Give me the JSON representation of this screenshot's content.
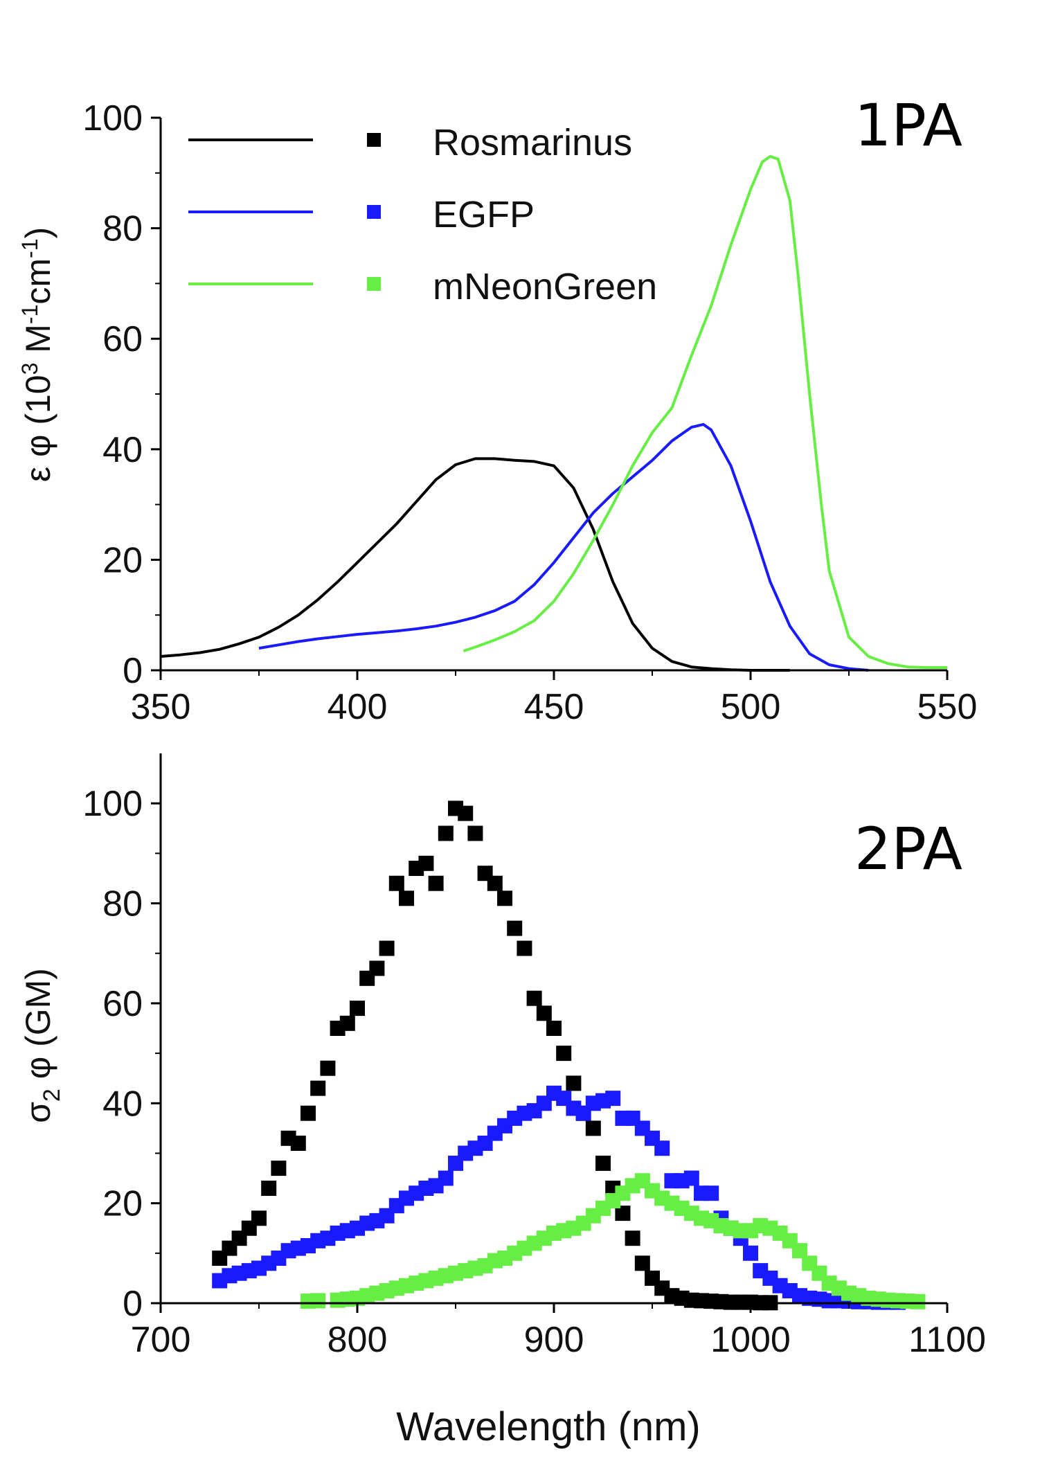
{
  "chart_data": [
    {
      "type": "line",
      "panel_label": "1PA",
      "xlabel": "",
      "ylabel": "ε φ (10³ M⁻¹cm⁻¹)",
      "ylabel_parts": {
        "pre": "ε φ (10",
        "sup1": "3",
        "mid": " M",
        "sup2": "-1",
        "mid2": "cm",
        "sup3": "-1",
        "post": ")"
      },
      "xlim": [
        350,
        550
      ],
      "ylim": [
        0,
        100
      ],
      "xticks": [
        "350",
        "400",
        "450",
        "500",
        "550"
      ],
      "yticks": [
        "0",
        "20",
        "40",
        "60",
        "80",
        "100"
      ],
      "legend": {
        "placement": "top-left",
        "entries": [
          {
            "label": "Rosmarinus",
            "color": "#000000"
          },
          {
            "label": "EGFP",
            "color": "#1a1aff"
          },
          {
            "label": "mNeonGreen",
            "color": "#66ee44"
          }
        ]
      },
      "series": [
        {
          "name": "Rosmarinus",
          "color": "#000000",
          "x": [
            350,
            355,
            360,
            365,
            370,
            375,
            380,
            385,
            390,
            395,
            400,
            405,
            410,
            415,
            420,
            425,
            430,
            435,
            440,
            445,
            450,
            455,
            460,
            465,
            470,
            475,
            480,
            485,
            490,
            495,
            500,
            505,
            510
          ],
          "y": [
            2.5,
            2.8,
            3.2,
            3.8,
            4.8,
            6.0,
            7.8,
            10,
            12.8,
            16,
            19.5,
            23,
            26.5,
            30.5,
            34.5,
            37.2,
            38.3,
            38.3,
            38,
            37.8,
            37,
            33,
            25.5,
            16,
            8.5,
            4,
            1.6,
            0.6,
            0.3,
            0.1,
            0,
            0,
            0
          ]
        },
        {
          "name": "EGFP",
          "color": "#1a1aff",
          "x": [
            375,
            380,
            385,
            390,
            395,
            400,
            405,
            410,
            415,
            420,
            425,
            430,
            435,
            440,
            445,
            450,
            455,
            460,
            465,
            470,
            475,
            480,
            485,
            488,
            490,
            495,
            500,
            505,
            510,
            515,
            520,
            525,
            530
          ],
          "y": [
            4,
            4.6,
            5.2,
            5.7,
            6.1,
            6.5,
            6.8,
            7.1,
            7.5,
            8.0,
            8.7,
            9.6,
            10.8,
            12.5,
            15.5,
            19.5,
            24,
            28.5,
            32,
            35,
            38,
            41.5,
            44,
            44.5,
            43.5,
            37,
            27,
            16,
            8,
            3,
            1,
            0.3,
            0
          ]
        },
        {
          "name": "mNeonGreen",
          "color": "#66ee44",
          "x": [
            427,
            430,
            435,
            440,
            445,
            450,
            455,
            460,
            465,
            470,
            475,
            480,
            485,
            490,
            495,
            500,
            503,
            505,
            507,
            510,
            512,
            515,
            518,
            520,
            525,
            530,
            535,
            540,
            545,
            550
          ],
          "y": [
            3.5,
            4.2,
            5.5,
            7.0,
            9.0,
            12.5,
            17.5,
            23.5,
            30,
            37,
            43,
            47.5,
            57,
            66,
            77,
            87,
            92,
            93,
            92.5,
            85,
            72,
            50,
            30,
            18,
            6,
            2.5,
            1.2,
            0.6,
            0.5,
            0.5
          ]
        }
      ]
    },
    {
      "type": "scatter",
      "panel_label": "2PA",
      "xlabel": "Wavelength (nm)",
      "ylabel": "σ₂ φ (GM)",
      "ylabel_parts": {
        "pre": "σ",
        "sub": "2",
        "post": " φ (GM)"
      },
      "xlim": [
        700,
        1100
      ],
      "ylim": [
        0,
        110
      ],
      "xticks": [
        "700",
        "800",
        "900",
        "1000",
        "1100"
      ],
      "yticks": [
        "0",
        "20",
        "40",
        "60",
        "80",
        "100"
      ],
      "series": [
        {
          "name": "Rosmarinus",
          "color": "#000000",
          "x": [
            730,
            735,
            740,
            745,
            750,
            755,
            760,
            765,
            770,
            775,
            780,
            785,
            790,
            795,
            800,
            805,
            810,
            815,
            820,
            825,
            830,
            835,
            840,
            845,
            850,
            855,
            860,
            865,
            870,
            875,
            880,
            885,
            890,
            895,
            900,
            905,
            910,
            915,
            920,
            925,
            930,
            935,
            940,
            945,
            950,
            955,
            960,
            965,
            970,
            975,
            980,
            985,
            990,
            995,
            1000,
            1005,
            1010
          ],
          "y": [
            9,
            11,
            13,
            15,
            17,
            23,
            27,
            33,
            32,
            38,
            43,
            47,
            55,
            56,
            59,
            65,
            67,
            71,
            84,
            81,
            87,
            88,
            84,
            94,
            99,
            98,
            94,
            86,
            84,
            81,
            75,
            71,
            61,
            58,
            55,
            50,
            44,
            38,
            35,
            28,
            23,
            18,
            13,
            8,
            5,
            3,
            1.5,
            1,
            0.6,
            0.5,
            0.4,
            0.3,
            0.2,
            0.2,
            0.2,
            0.1,
            0.1
          ]
        },
        {
          "name": "EGFP",
          "color": "#1a1aff",
          "x": [
            730,
            735,
            740,
            745,
            750,
            755,
            760,
            765,
            770,
            775,
            780,
            785,
            790,
            795,
            800,
            805,
            810,
            815,
            820,
            825,
            830,
            835,
            840,
            845,
            850,
            855,
            860,
            865,
            870,
            875,
            880,
            885,
            890,
            895,
            900,
            905,
            910,
            915,
            920,
            925,
            930,
            935,
            940,
            945,
            950,
            955,
            960,
            965,
            970,
            975,
            980,
            985,
            990,
            995,
            1000,
            1005,
            1010,
            1015,
            1020,
            1025,
            1030,
            1035,
            1040,
            1045,
            1050,
            1055,
            1060,
            1065,
            1070,
            1075
          ],
          "y": [
            4.5,
            5.5,
            6,
            6.5,
            7,
            8,
            9,
            10.5,
            11,
            11.5,
            12.5,
            13,
            14,
            14.5,
            15,
            16,
            16.5,
            17.5,
            19.5,
            21,
            22,
            23,
            23.5,
            25,
            28,
            30,
            31,
            32,
            34,
            35.5,
            37,
            38,
            38.5,
            40,
            42,
            41,
            39,
            38,
            40,
            40.5,
            41,
            37,
            37,
            35,
            33,
            31,
            24.5,
            24.5,
            25,
            22,
            22,
            17,
            15,
            13,
            10,
            6.5,
            5,
            3.5,
            2.5,
            1.5,
            1,
            0.8,
            0.5,
            0.5,
            0.4,
            0.3,
            0.3,
            0.2,
            0.2,
            0.2
          ]
        },
        {
          "name": "mNeonGreen",
          "color": "#66ee44",
          "x": [
            775,
            780,
            790,
            795,
            800,
            805,
            810,
            815,
            820,
            825,
            830,
            835,
            840,
            845,
            850,
            855,
            860,
            865,
            870,
            875,
            880,
            885,
            890,
            895,
            900,
            905,
            910,
            915,
            920,
            925,
            930,
            935,
            940,
            945,
            950,
            955,
            960,
            965,
            970,
            975,
            980,
            985,
            990,
            995,
            1000,
            1005,
            1010,
            1015,
            1020,
            1025,
            1030,
            1035,
            1040,
            1045,
            1050,
            1055,
            1060,
            1065,
            1070,
            1075,
            1080,
            1085
          ],
          "y": [
            0.4,
            0.5,
            0.6,
            0.8,
            1,
            1.5,
            2,
            2.5,
            3,
            3.5,
            4,
            4.5,
            5,
            5.5,
            6,
            6.5,
            7,
            7.5,
            8.5,
            9,
            10,
            11,
            12,
            13,
            14,
            14.5,
            15,
            16,
            17.5,
            19,
            20.5,
            22,
            23.5,
            24.5,
            22.5,
            21,
            20,
            19,
            18,
            17,
            16.5,
            15.5,
            15,
            14.5,
            14.5,
            15.5,
            15,
            14,
            12.5,
            10.5,
            8,
            6,
            4,
            3,
            2,
            1.5,
            1,
            0.8,
            0.6,
            0.5,
            0.4,
            0.3
          ]
        }
      ]
    }
  ]
}
